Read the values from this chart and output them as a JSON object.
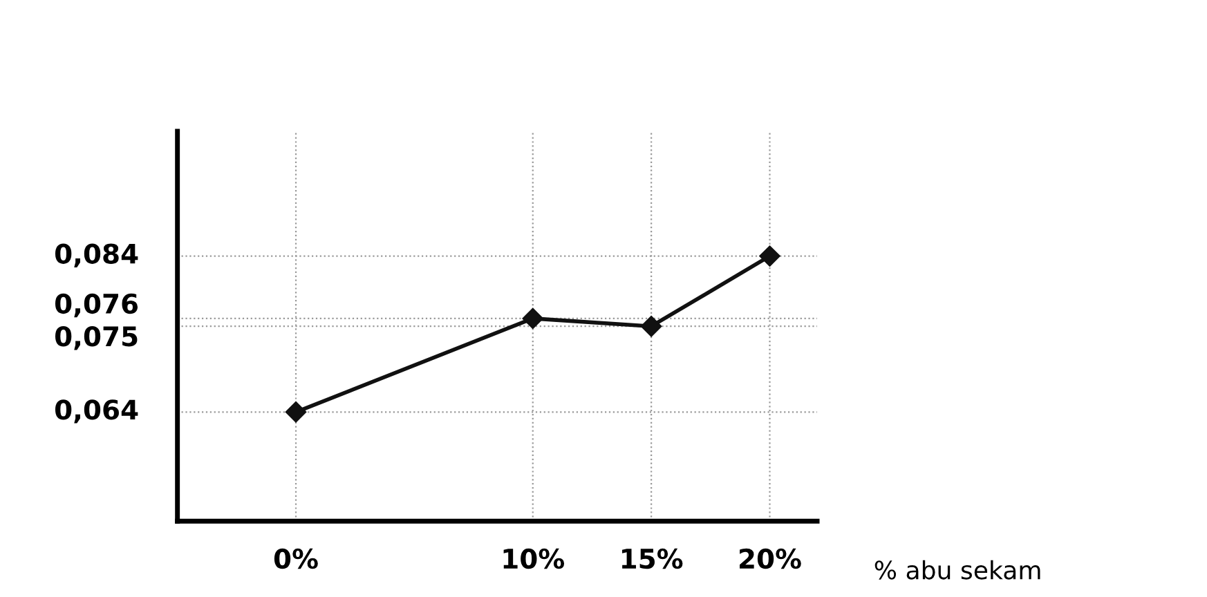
{
  "chart_data": {
    "type": "line",
    "xlabel": "% abu sekam",
    "x": [
      0,
      10,
      15,
      20
    ],
    "series": [
      {
        "color": "#111111",
        "values": [
          0.064,
          0.076,
          0.075,
          0.084
        ]
      }
    ],
    "xlim": [
      -5,
      22
    ],
    "ylim": [
      0.05,
      0.1
    ],
    "xticks": [
      {
        "value": 0,
        "label": "0%"
      },
      {
        "value": 10,
        "label": "10%"
      },
      {
        "value": 15,
        "label": "15%"
      },
      {
        "value": 20,
        "label": "20%"
      }
    ],
    "yticks": [
      {
        "value": 0.064,
        "label": "0,064"
      },
      {
        "value": 0.075,
        "label": "0,075"
      },
      {
        "value": 0.076,
        "label": "0,076"
      },
      {
        "value": 0.084,
        "label": "0,084"
      }
    ],
    "grid": true,
    "marker": "diamond",
    "line_style": "solid"
  }
}
